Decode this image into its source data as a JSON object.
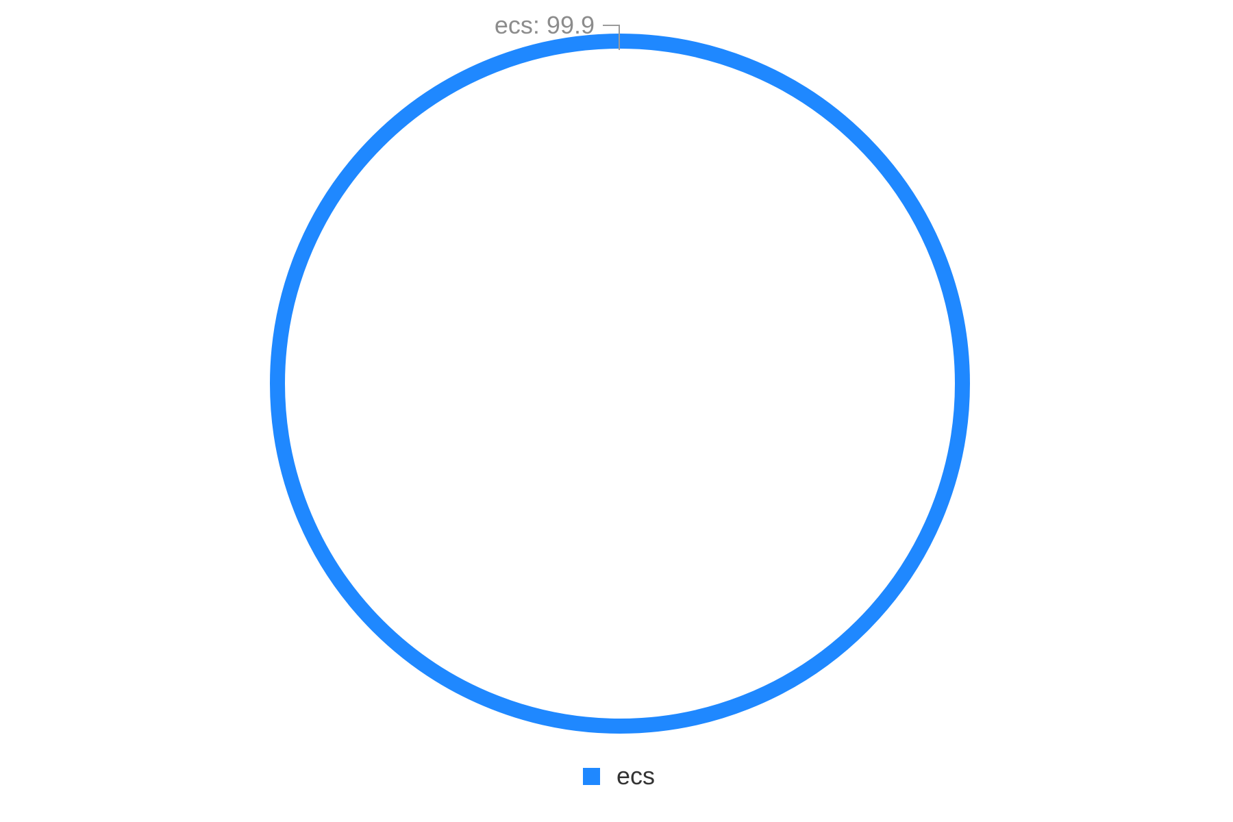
{
  "chart_data": {
    "type": "pie",
    "style": "donut",
    "categories": [
      "ecs"
    ],
    "values": [
      99.9
    ],
    "series": [
      {
        "name": "ecs",
        "value": 99.9,
        "color": "#1f88ff"
      }
    ],
    "data_labels": [
      "ecs: 99.9"
    ],
    "legend": {
      "position": "bottom-center",
      "entries": [
        "ecs"
      ]
    }
  }
}
